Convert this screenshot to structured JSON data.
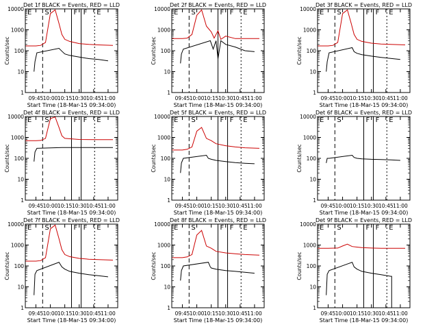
{
  "page": {
    "xlabel": "Start Time (18-Mar-15 09:34:00)",
    "ylabel": "Counts/sec",
    "time_ticks": [
      "09:45",
      "10:00",
      "10:15",
      "10:30",
      "10:45",
      "11:00"
    ],
    "y_ticks": [
      "1",
      "10",
      "100",
      "1000",
      "10000"
    ],
    "colors": {
      "events": "#000000",
      "lld": "#cc0000",
      "axes": "#000000"
    }
  },
  "chart_data": [
    {
      "type": "line",
      "title": "Det 1f BLACK = Events, RED = LLD",
      "xlabel": "Start Time (18-Mar-15 09:34:00)",
      "ylabel": "Counts/sec",
      "yscale": "log",
      "ylim": [
        1,
        10000
      ],
      "xlim": [
        "09:34",
        "11:10"
      ],
      "markers": [
        {
          "time": "09:34",
          "label": "E"
        },
        {
          "time": "09:52",
          "label": "S"
        },
        {
          "time": "10:22",
          "label": "F"
        },
        {
          "time": "10:32",
          "label": "F"
        },
        {
          "time": "10:46",
          "label": "E"
        }
      ],
      "series": [
        {
          "name": "LLD",
          "color": "#cc0000",
          "x": [
            "09:34",
            "09:45",
            "09:50",
            "09:55",
            "10:00",
            "10:05",
            "10:09",
            "10:12",
            "10:15",
            "10:20",
            "10:30",
            "10:40",
            "10:50",
            "11:05"
          ],
          "y": [
            170,
            170,
            180,
            250,
            6000,
            9000,
            2000,
            600,
            350,
            280,
            220,
            200,
            190,
            180
          ]
        },
        {
          "name": "Events",
          "color": "#000000",
          "x": [
            "09:43",
            "09:44",
            "09:44",
            "09:46",
            "10:09",
            "10:12",
            "10:15",
            "10:20",
            "10:30",
            "10:40",
            "10:50",
            "11:00"
          ],
          "y": [
            10,
            30,
            30,
            80,
            130,
            95,
            70,
            60,
            50,
            42,
            38,
            33
          ]
        }
      ]
    },
    {
      "type": "line",
      "title": "Det 2f BLACK = Events, RED = LLD",
      "xlabel": "Start Time (18-Mar-15 09:34:00)",
      "ylabel": "Counts/sec",
      "yscale": "log",
      "ylim": [
        1,
        10000
      ],
      "xlim": [
        "09:34",
        "11:10"
      ],
      "markers": [
        {
          "time": "09:34",
          "label": "E"
        },
        {
          "time": "09:52",
          "label": "S"
        },
        {
          "time": "10:22",
          "label": "F"
        },
        {
          "time": "10:32",
          "label": "F"
        },
        {
          "time": "10:46",
          "label": "E"
        }
      ],
      "series": [
        {
          "name": "LLD",
          "color": "#cc0000",
          "x": [
            "09:34",
            "09:45",
            "09:50",
            "09:55",
            "10:00",
            "10:05",
            "10:10",
            "10:15",
            "10:18",
            "10:22",
            "10:25",
            "10:30",
            "10:40",
            "10:50",
            "11:05"
          ],
          "y": [
            380,
            380,
            400,
            600,
            5000,
            9000,
            1500,
            800,
            400,
            900,
            350,
            500,
            380,
            380,
            380
          ]
        },
        {
          "name": "Events",
          "color": "#000000",
          "x": [
            "09:43",
            "09:44",
            "09:44",
            "09:46",
            "10:14",
            "10:17",
            "10:20",
            "10:22",
            "10:25",
            "10:30",
            "10:40",
            "10:50",
            "11:00"
          ],
          "y": [
            25,
            70,
            70,
            120,
            300,
            120,
            300,
            40,
            300,
            200,
            150,
            100,
            90
          ]
        }
      ]
    },
    {
      "type": "line",
      "title": "Det 3f BLACK = Events, RED = LLD",
      "xlabel": "Start Time (18-Mar-15 09:34:00)",
      "ylabel": "Counts/sec",
      "yscale": "log",
      "ylim": [
        1,
        10000
      ],
      "xlim": [
        "09:34",
        "11:10"
      ],
      "markers": [
        {
          "time": "09:34",
          "label": "E"
        },
        {
          "time": "09:52",
          "label": "S"
        },
        {
          "time": "10:22",
          "label": "F"
        },
        {
          "time": "10:32",
          "label": "F"
        },
        {
          "time": "10:46",
          "label": "E"
        }
      ],
      "series": [
        {
          "name": "LLD",
          "color": "#cc0000",
          "x": [
            "09:34",
            "09:45",
            "09:50",
            "09:55",
            "10:00",
            "10:05",
            "10:09",
            "10:12",
            "10:15",
            "10:20",
            "10:30",
            "10:40",
            "10:50",
            "11:05"
          ],
          "y": [
            170,
            170,
            180,
            250,
            6000,
            9000,
            2000,
            600,
            350,
            280,
            230,
            210,
            200,
            190
          ]
        },
        {
          "name": "Events",
          "color": "#000000",
          "x": [
            "09:43",
            "09:44",
            "09:44",
            "09:46",
            "10:10",
            "10:12",
            "10:15",
            "10:20",
            "10:30",
            "10:40",
            "10:50",
            "11:00"
          ],
          "y": [
            10,
            30,
            30,
            80,
            140,
            90,
            75,
            65,
            55,
            48,
            43,
            38
          ]
        }
      ]
    },
    {
      "type": "line",
      "title": "Det 4f BLACK = Events, RED = LLD",
      "xlabel": "Start Time (18-Mar-15 09:34:00)",
      "ylabel": "Counts/sec",
      "yscale": "log",
      "ylim": [
        1,
        10000
      ],
      "xlim": [
        "09:34",
        "11:10"
      ],
      "markers": [
        {
          "time": "09:34",
          "label": "E"
        },
        {
          "time": "09:52",
          "label": "S"
        },
        {
          "time": "10:22",
          "label": "F"
        },
        {
          "time": "10:32",
          "label": "F"
        },
        {
          "time": "10:46",
          "label": "E"
        }
      ],
      "series": [
        {
          "name": "LLD",
          "color": "#cc0000",
          "x": [
            "09:34",
            "09:45",
            "09:50",
            "09:55",
            "10:00",
            "10:05",
            "10:09",
            "10:12",
            "10:15",
            "10:30",
            "10:50",
            "11:05"
          ],
          "y": [
            700,
            700,
            720,
            900,
            8000,
            9500,
            3000,
            1200,
            900,
            800,
            780,
            780
          ]
        },
        {
          "name": "Events",
          "color": "#000000",
          "x": [
            "09:43",
            "09:44",
            "09:44",
            "09:46",
            "10:12",
            "10:13",
            "10:30",
            "10:50",
            "11:05"
          ],
          "y": [
            70,
            200,
            200,
            300,
            330,
            330,
            330,
            330,
            330
          ]
        }
      ]
    },
    {
      "type": "line",
      "title": "Det 5f BLACK = Events, RED = LLD",
      "xlabel": "Start Time (18-Mar-15 09:34:00)",
      "ylabel": "Counts/sec",
      "yscale": "log",
      "ylim": [
        1,
        10000
      ],
      "xlim": [
        "09:34",
        "11:10"
      ],
      "markers": [
        {
          "time": "09:34",
          "label": "E"
        },
        {
          "time": "09:52",
          "label": "S"
        },
        {
          "time": "10:22",
          "label": "F"
        },
        {
          "time": "10:32",
          "label": "F"
        },
        {
          "time": "10:46",
          "label": "E"
        }
      ],
      "series": [
        {
          "name": "LLD",
          "color": "#cc0000",
          "x": [
            "09:34",
            "09:45",
            "09:50",
            "09:55",
            "10:00",
            "10:05",
            "10:10",
            "10:15",
            "10:20",
            "10:30",
            "10:40",
            "10:50",
            "11:05"
          ],
          "y": [
            250,
            250,
            270,
            350,
            2000,
            3000,
            900,
            700,
            500,
            400,
            350,
            320,
            300
          ]
        },
        {
          "name": "Events",
          "color": "#000000",
          "x": [
            "09:43",
            "09:44",
            "09:44",
            "09:46",
            "10:10",
            "10:12",
            "10:15",
            "10:20",
            "10:30",
            "10:40",
            "10:50",
            "11:00"
          ],
          "y": [
            20,
            60,
            60,
            100,
            140,
            100,
            90,
            80,
            70,
            62,
            58,
            55
          ]
        }
      ]
    },
    {
      "type": "line",
      "title": "Det 6f BLACK = Events, RED = LLD",
      "xlabel": "Start Time (18-Mar-15 09:34:00)",
      "ylabel": "Counts/sec",
      "yscale": "log",
      "ylim": [
        1,
        10000
      ],
      "xlim": [
        "09:34",
        "11:10"
      ],
      "markers": [
        {
          "time": "09:34",
          "label": "E"
        },
        {
          "time": "09:52",
          "label": "S"
        },
        {
          "time": "10:22",
          "label": "F"
        },
        {
          "time": "10:32",
          "label": "F"
        },
        {
          "time": "10:46",
          "label": "E"
        }
      ],
      "series": [
        {
          "name": "Events",
          "color": "#000000",
          "x": [
            "09:43",
            "09:44",
            "09:46",
            "10:10",
            "10:12",
            "10:15",
            "10:20",
            "10:30",
            "10:40",
            "10:50",
            "11:00"
          ],
          "y": [
            60,
            100,
            100,
            140,
            110,
            100,
            95,
            90,
            88,
            85,
            80
          ]
        }
      ]
    },
    {
      "type": "line",
      "title": "Det 7f BLACK = Events, RED = LLD",
      "xlabel": "Start Time (18-Mar-15 09:34:00)",
      "ylabel": "Counts/sec",
      "yscale": "log",
      "ylim": [
        1,
        10000
      ],
      "xlim": [
        "09:34",
        "11:10"
      ],
      "markers": [
        {
          "time": "09:34",
          "label": "E"
        },
        {
          "time": "09:52",
          "label": "S"
        },
        {
          "time": "10:22",
          "label": "F"
        },
        {
          "time": "10:32",
          "label": "F"
        },
        {
          "time": "10:46",
          "label": "E"
        }
      ],
      "series": [
        {
          "name": "LLD",
          "color": "#cc0000",
          "x": [
            "09:34",
            "09:45",
            "09:50",
            "09:55",
            "10:00",
            "10:05",
            "10:09",
            "10:12",
            "10:15",
            "10:20",
            "10:30",
            "10:40",
            "10:50",
            "11:05"
          ],
          "y": [
            170,
            170,
            180,
            250,
            6000,
            9000,
            2000,
            600,
            350,
            280,
            230,
            210,
            200,
            190
          ]
        },
        {
          "name": "Events",
          "color": "#000000",
          "x": [
            "09:43",
            "09:44",
            "09:44",
            "09:46",
            "10:09",
            "10:12",
            "10:15",
            "10:20",
            "10:30",
            "10:40",
            "10:50",
            "11:00"
          ],
          "y": [
            4,
            40,
            40,
            60,
            150,
            90,
            70,
            55,
            45,
            38,
            34,
            30
          ]
        }
      ]
    },
    {
      "type": "line",
      "title": "Det 8f BLACK = Events, RED = LLD",
      "xlabel": "Start Time (18-Mar-15 09:34:00)",
      "ylabel": "Counts/sec",
      "yscale": "log",
      "ylim": [
        1,
        10000
      ],
      "xlim": [
        "09:34",
        "11:10"
      ],
      "markers": [
        {
          "time": "09:34",
          "label": "E"
        },
        {
          "time": "09:52",
          "label": "S"
        },
        {
          "time": "10:22",
          "label": "F"
        },
        {
          "time": "10:32",
          "label": "F"
        },
        {
          "time": "10:46",
          "label": "E"
        }
      ],
      "series": [
        {
          "name": "LLD",
          "color": "#cc0000",
          "x": [
            "09:34",
            "09:45",
            "09:50",
            "09:55",
            "10:00",
            "10:05",
            "10:10",
            "10:15",
            "10:20",
            "10:30",
            "10:40",
            "10:50",
            "11:05"
          ],
          "y": [
            250,
            250,
            270,
            350,
            3000,
            5000,
            900,
            700,
            500,
            420,
            380,
            350,
            330
          ]
        },
        {
          "name": "Events",
          "color": "#000000",
          "x": [
            "09:43",
            "09:44",
            "09:44",
            "09:46",
            "10:12",
            "10:14",
            "10:15",
            "10:20",
            "10:30",
            "10:40",
            "10:50",
            "11:00"
          ],
          "y": [
            20,
            60,
            60,
            100,
            150,
            90,
            80,
            70,
            60,
            55,
            50,
            45
          ]
        }
      ]
    },
    {
      "type": "line",
      "title": "Det 9f BLACK = Events, RED = LLD",
      "xlabel": "Start Time (18-Mar-15 09:34:00)",
      "ylabel": "Counts/sec",
      "yscale": "log",
      "ylim": [
        1,
        10000
      ],
      "xlim": [
        "09:34",
        "11:10"
      ],
      "markers": [
        {
          "time": "09:34",
          "label": "E"
        },
        {
          "time": "09:52",
          "label": "S"
        },
        {
          "time": "10:22",
          "label": "F"
        },
        {
          "time": "10:32",
          "label": "F"
        },
        {
          "time": "10:46",
          "label": "E"
        }
      ],
      "series": [
        {
          "name": "LLD",
          "color": "#cc0000",
          "x": [
            "09:34",
            "09:45",
            "09:55",
            "10:00",
            "10:05",
            "10:10",
            "10:15",
            "10:20",
            "10:30",
            "10:40",
            "10:50",
            "11:05"
          ],
          "y": [
            700,
            700,
            720,
            900,
            1100,
            850,
            800,
            750,
            720,
            700,
            700,
            700
          ]
        },
        {
          "name": "Events",
          "color": "#000000",
          "x": [
            "09:43",
            "09:44",
            "09:44",
            "09:46",
            "10:10",
            "10:12",
            "10:15",
            "10:20",
            "10:30",
            "10:40",
            "10:50",
            "10:51",
            "10:51"
          ],
          "y": [
            4,
            40,
            40,
            60,
            150,
            90,
            70,
            55,
            45,
            38,
            32,
            32,
            1
          ]
        }
      ]
    }
  ]
}
